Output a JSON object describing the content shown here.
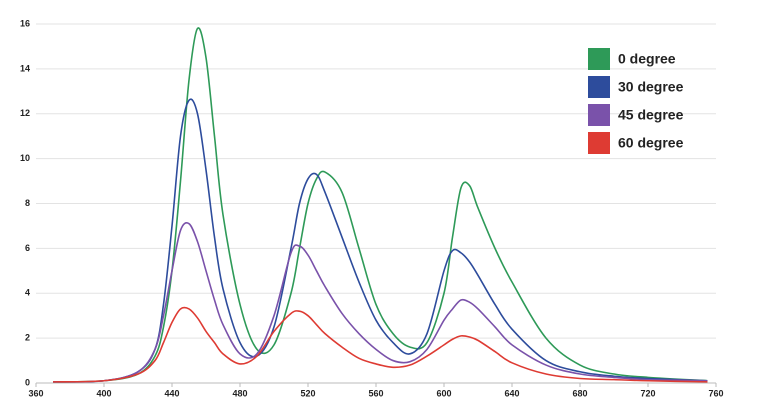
{
  "chart_data": {
    "type": "line",
    "x": [
      370,
      400,
      420,
      430,
      435,
      440,
      445,
      450,
      455,
      460,
      465,
      470,
      480,
      490,
      500,
      510,
      515,
      520,
      525,
      530,
      540,
      550,
      560,
      570,
      580,
      590,
      600,
      605,
      610,
      615,
      620,
      630,
      640,
      660,
      680,
      700,
      720,
      755
    ],
    "series": [
      {
        "name": "0 degree",
        "color": "#2e9a58",
        "values": [
          0.05,
          0.1,
          0.4,
          1.2,
          2.5,
          5,
          9,
          13.5,
          15.8,
          14.5,
          11,
          7.5,
          3.5,
          1.5,
          1.7,
          4,
          6,
          8,
          9.1,
          9.4,
          8.5,
          6,
          3.5,
          2.2,
          1.6,
          1.8,
          4,
          6.5,
          8.7,
          8.8,
          7.8,
          6,
          4.5,
          2,
          0.8,
          0.4,
          0.25,
          0.1
        ]
      },
      {
        "name": "30 degree",
        "color": "#2d4c9c",
        "values": [
          0.05,
          0.1,
          0.5,
          1.5,
          3.5,
          7,
          11,
          12.6,
          12,
          9.5,
          6.5,
          4.2,
          1.8,
          1.2,
          2.5,
          6,
          8,
          9.1,
          9.3,
          8.5,
          6.5,
          4.5,
          2.8,
          1.8,
          1.3,
          2.2,
          5,
          5.9,
          5.8,
          5.4,
          4.8,
          3.5,
          2.4,
          1,
          0.5,
          0.3,
          0.2,
          0.1
        ]
      },
      {
        "name": "45 degree",
        "color": "#7a52aa",
        "values": [
          0.05,
          0.1,
          0.5,
          1.5,
          3,
          5,
          6.8,
          7.1,
          6.3,
          5,
          3.7,
          2.6,
          1.3,
          1.3,
          3,
          5.8,
          6.1,
          5.7,
          5,
          4.3,
          3.1,
          2.2,
          1.5,
          1.0,
          0.95,
          1.5,
          2.8,
          3.3,
          3.7,
          3.6,
          3.3,
          2.5,
          1.7,
          0.8,
          0.4,
          0.25,
          0.15,
          0.1
        ]
      },
      {
        "name": "60 degree",
        "color": "#de3b33",
        "values": [
          0.05,
          0.1,
          0.4,
          1,
          1.8,
          2.7,
          3.3,
          3.3,
          2.9,
          2.3,
          1.8,
          1.3,
          0.85,
          1.2,
          2.3,
          3.1,
          3.2,
          3.0,
          2.6,
          2.2,
          1.6,
          1.1,
          0.85,
          0.7,
          0.8,
          1.2,
          1.7,
          1.95,
          2.1,
          2.05,
          1.9,
          1.4,
          0.9,
          0.4,
          0.2,
          0.15,
          0.1,
          0.05
        ]
      }
    ],
    "xlim": [
      360,
      760
    ],
    "xticks": [
      360,
      400,
      440,
      480,
      520,
      560,
      600,
      640,
      680,
      720,
      760
    ],
    "ylim": [
      0,
      16
    ],
    "yticks": [
      0,
      2,
      4,
      6,
      8,
      10,
      12,
      14,
      16
    ],
    "grid": true,
    "legend": "upper right"
  }
}
